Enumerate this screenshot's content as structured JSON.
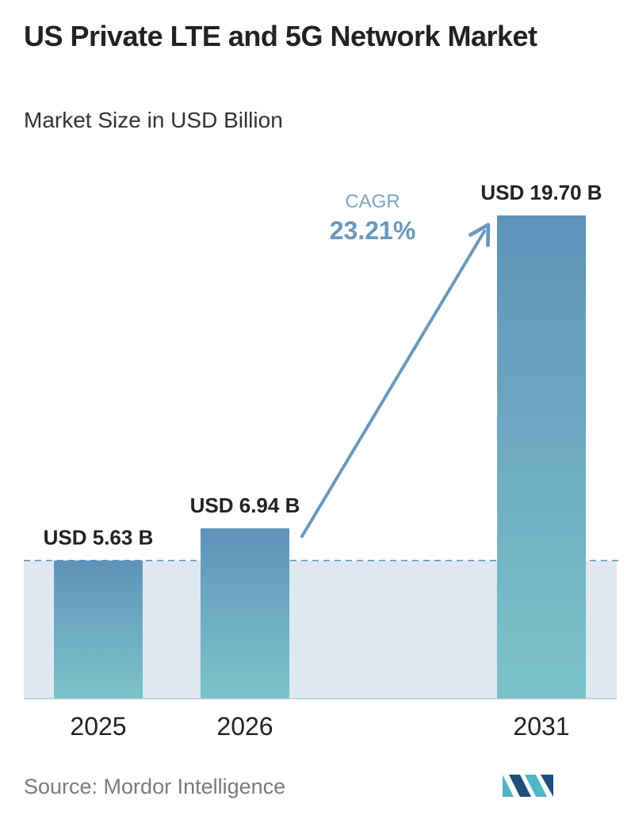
{
  "title": "US Private LTE and 5G Network Market",
  "subtitle": "Market Size in USD Billion",
  "source": "Source:  Mordor Intelligence",
  "colors": {
    "bar_top": "#5f93bb",
    "bar_bottom": "#7cc3c9",
    "band": "#dfe8f1",
    "dashed_line": "#5c8fb0",
    "arrow": "#6a98bd",
    "cagr_label": "#7fa3bf",
    "cagr_value": "#6a98bd",
    "baseline": "#cfcfcf",
    "logo_dark": "#1f4e79",
    "logo_light": "#4fb6c4"
  },
  "cagr": {
    "label": "CAGR",
    "value": "23.21%"
  },
  "logo": {
    "name": "mordor-intelligence-logo-icon"
  },
  "chart_data": {
    "type": "bar",
    "title": "US Private LTE and 5G Network Market",
    "subtitle": "Market Size in USD Billion",
    "categories": [
      "2025",
      "2026",
      "2031"
    ],
    "values": [
      5.63,
      6.94,
      19.7
    ],
    "data_labels": [
      "USD 5.63 B",
      "USD 6.94 B",
      "USD 19.70 B"
    ],
    "ylim": [
      0,
      20
    ],
    "grid": false,
    "legend": "none",
    "annotations": [
      {
        "type": "reference-line",
        "style": "dashed",
        "value": 5.63
      },
      {
        "type": "arrow",
        "from": "2026",
        "to": "2031",
        "label": "CAGR",
        "value": "23.21%"
      }
    ]
  }
}
